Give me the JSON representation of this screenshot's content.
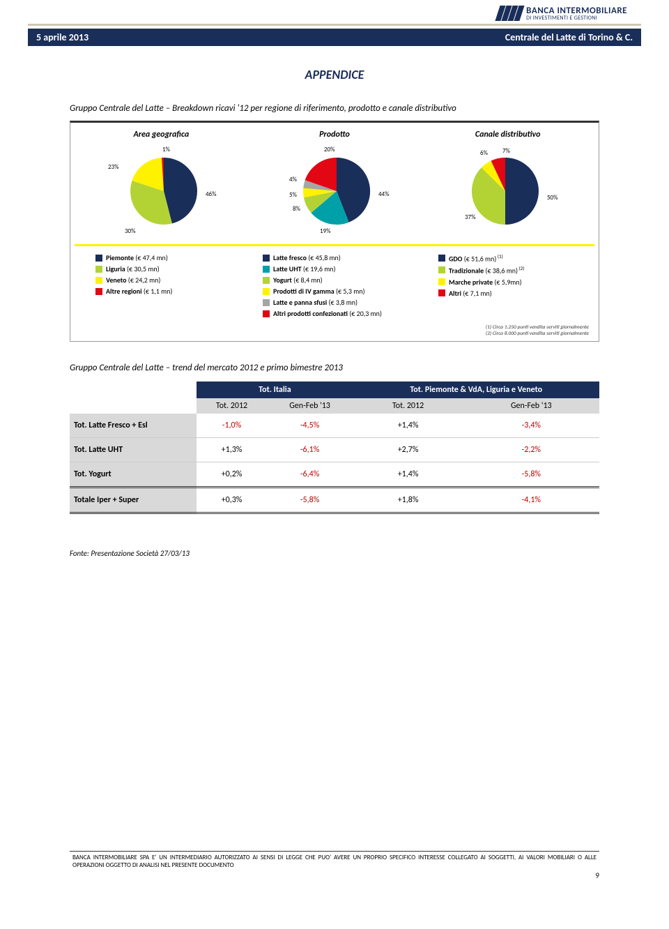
{
  "logo": {
    "main": "BANCA INTERMOBILIARE",
    "sub": "DI INVESTIMENTI E GESTIONI"
  },
  "titlebar": {
    "date": "5 aprile 2013",
    "company": "Centrale del Latte di Torino & C."
  },
  "appendice": "APPENDICE",
  "caption1": "Gruppo Centrale del Latte – Breakdown ricavi '12 per regione di riferimento, prodotto e canale distributivo",
  "caption2": "Gruppo Centrale del Latte – trend del mercato 2012 e primo bimestre 2013",
  "charts": {
    "titles": [
      "Area geografica",
      "Prodotto",
      "Canale distributivo"
    ],
    "area": {
      "labels_pct": [
        "1%",
        "23%",
        "46%",
        "30%"
      ],
      "legend": [
        {
          "color": "#1a2e5a",
          "label": "Piemonte",
          "val": "(€ 47,4 mn)"
        },
        {
          "color": "#b3d335",
          "label": "Liguria",
          "val": "(€ 30,5 mn)"
        },
        {
          "color": "#fff200",
          "label": "Veneto",
          "val": "(€ 24,2 mn)"
        },
        {
          "color": "#e30613",
          "label": "Altre regioni",
          "val": "(€ 1,1 mn)"
        }
      ]
    },
    "prodotto": {
      "labels_pct": [
        "20%",
        "4%",
        "5%",
        "8%",
        "19%",
        "44%"
      ],
      "legend": [
        {
          "color": "#1a2e5a",
          "label": "Latte fresco",
          "val": "(€ 45,8 mn)"
        },
        {
          "color": "#00a0a8",
          "label": "Latte UHT",
          "val": "(€ 19,6 mn)"
        },
        {
          "color": "#b3d335",
          "label": "Yogurt",
          "val": "(€ 8,4 mn)"
        },
        {
          "color": "#fff200",
          "label": "Prodotti di IV gamma",
          "val": "(€ 5,3 mn)"
        },
        {
          "color": "#a6a6a6",
          "label": "Latte e panna sfusi",
          "val": "(€ 3,8 mn)"
        },
        {
          "color": "#e30613",
          "label": "Altri prodotti confezionati",
          "val": "(€ 20,3 mn)"
        }
      ]
    },
    "canale": {
      "labels_pct": [
        "7%",
        "6%",
        "50%",
        "37%"
      ],
      "legend": [
        {
          "color": "#1a2e5a",
          "label": "GDO",
          "val": "(€ 51,6 mn)",
          "sup": "(1)"
        },
        {
          "color": "#b3d335",
          "label": "Tradizionale",
          "val": "(€ 38,6 mn)",
          "sup": "(2)"
        },
        {
          "color": "#fff200",
          "label": "Marche private",
          "val": "(€ 5,9mn)"
        },
        {
          "color": "#e30613",
          "label": "Altri",
          "val": "(€ 7,1 mn)"
        }
      ]
    },
    "footnotes": [
      "(1) Circa 1.250 punti vendita serviti giornalmente",
      "(2) Circa 8.000 punti vendita serviti giornalmente"
    ]
  },
  "table": {
    "head1": [
      "",
      "Tot. Italia",
      "Tot. Piemonte & VdA, Liguria e Veneto"
    ],
    "head2": [
      "",
      "Tot. 2012",
      "Gen-Feb '13",
      "Tot. 2012",
      "Gen-Feb '13"
    ],
    "rows": [
      {
        "label": "Tot. Latte Fresco + Esl",
        "c": [
          "-1,0%",
          "-4,5%",
          "+1,4%",
          "-3,4%"
        ]
      },
      {
        "label": "Tot. Latte UHT",
        "c": [
          "+1,3%",
          "-6,1%",
          "+2,7%",
          "-2,2%"
        ]
      },
      {
        "label": "Tot. Yogurt",
        "c": [
          "+0,2%",
          "-6,4%",
          "+1,4%",
          "-5,8%"
        ]
      },
      {
        "label": "Totale Iper + Super",
        "c": [
          "+0,3%",
          "-5,8%",
          "+1,8%",
          "-4,1%"
        ],
        "total": true
      }
    ]
  },
  "source": "Fonte: Presentazione Società 27/03/13",
  "footer": "BANCA INTERMOBILIARE  SPA E' UN INTERMEDIARIO AUTORIZZATO AI SENSI DI LEGGE CHE PUO' AVERE UN PROPRIO SPECIFICO INTERESSE COLLEGATO AI SOGGETTI, AI VALORI MOBILIARI O ALLE OPERAZIONI OGGETTO DI ANALISI NEL PRESENTE DOCUMENTO",
  "pagenum": "9"
}
